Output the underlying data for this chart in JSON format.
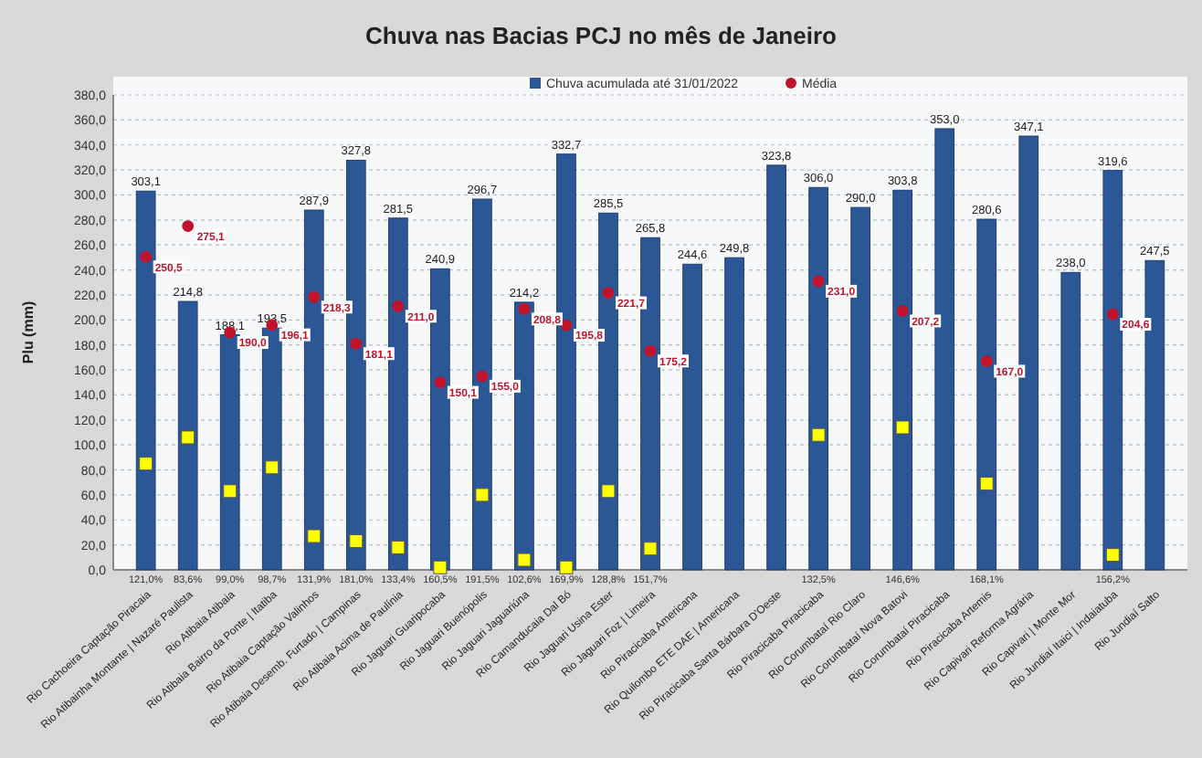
{
  "chart_data": {
    "type": "bar",
    "title": "Chuva nas Bacias PCJ no mês de Janeiro",
    "ylabel": "Plu (mm)",
    "categories": [
      "Rio Cachoeira Captação Piracaia",
      "Rio Atibainha Montante | Nazaré Paulista",
      "Rio Atibaia Atibaia",
      "Rio Atibaia Bairro da Ponte | Itatiba",
      "Rio Atibaia Captação Valinhos",
      "Rio Atibaia Desemb. Furtado | Campinas",
      "Rio Atibaia Acima de Paulínia",
      "Rio Jaguari Guaripocaba",
      "Rio Jaguari Buenópolis",
      "Rio Jaguari Jaguariúna",
      "Rio Camanducaia Dal Bó",
      "Rio Jaguari Usina Ester",
      "Rio Jaguari Foz | Limeira",
      "Rio Piracicaba Americana",
      "Rio Quilombo ETE DAE | Americana",
      "Rio Piracicaba Santa Bárbara D'Oeste",
      "Rio Piracicaba Piracicaba",
      "Rio Corumbataí Rio Claro",
      "Rio Corumbataí Nova Batovi",
      "Rio Corumbataí Piracicaba",
      "Rio Piracicaba Artemis",
      "Rio Capivari Reforma Agrária",
      "Rio Capivari | Monte Mor",
      "Rio Jundiaí Itaici | Indaiatuba",
      "Rio Jundiaí Salto"
    ],
    "series": [
      {
        "name": "Chuva acumulada até 31/01/2022",
        "type": "bar",
        "color": "#2b5797",
        "values": [
          303.1,
          214.8,
          188.1,
          193.5,
          287.9,
          327.8,
          281.5,
          240.9,
          296.7,
          214.2,
          332.7,
          285.5,
          265.8,
          244.6,
          249.8,
          323.8,
          306.0,
          290.0,
          303.8,
          353.0,
          280.6,
          347.1,
          238.0,
          319.6,
          247.5
        ],
        "value_labels": [
          "303,1",
          "214,8",
          "188,1",
          "193,5",
          "287,9",
          "327,8",
          "281,5",
          "240,9",
          "296,7",
          "214,2",
          "332,7",
          "285,5",
          "265,8",
          "244,6",
          "249,8",
          "323,8",
          "306,0",
          "290,0",
          "303,8",
          "353,0",
          "280,6",
          "347,1",
          "238,0",
          "319,6",
          "247,5"
        ]
      },
      {
        "name": "Média",
        "type": "scatter",
        "marker": "circle",
        "color": "#c0142c",
        "values": [
          250.5,
          275.1,
          190.0,
          196.1,
          218.3,
          181.1,
          211.0,
          150.1,
          155.0,
          208.8,
          195.8,
          221.7,
          175.2,
          null,
          null,
          null,
          231.0,
          null,
          207.2,
          null,
          167.0,
          null,
          null,
          204.6,
          null
        ],
        "value_labels": [
          "250,5",
          "275,1",
          "190,0",
          "196,1",
          "218,3",
          "181,1",
          "211,0",
          "150,1",
          "155,0",
          "208,8",
          "195,8",
          "221,7",
          "175,2",
          null,
          null,
          null,
          "231,0",
          null,
          "207,2",
          null,
          "167,0",
          null,
          null,
          "204,6",
          null
        ]
      },
      {
        "type": "scatter",
        "marker": "square",
        "color": "#ffff00",
        "values": [
          85,
          106,
          63,
          82,
          27,
          23,
          18,
          2,
          60,
          8,
          2,
          63,
          17,
          null,
          null,
          null,
          108,
          null,
          114,
          null,
          69,
          null,
          null,
          12,
          null
        ]
      }
    ],
    "annotations": [
      "121,0%",
      "83,6%",
      "99,0%",
      "98,7%",
      "131,9%",
      "181,0%",
      "133,4%",
      "160,5%",
      "191,5%",
      "102,6%",
      "169,9%",
      "128,8%",
      "151,7%",
      "132,5%",
      "146,6%",
      "168,1%",
      "156,2%"
    ],
    "ylim": [
      0,
      380
    ],
    "yticks": [
      {
        "value": 0,
        "label": "0,0"
      },
      {
        "value": 20,
        "label": "20,0"
      },
      {
        "value": 40,
        "label": "40,0"
      },
      {
        "value": 60,
        "label": "60,0"
      },
      {
        "value": 80,
        "label": "80,0"
      },
      {
        "value": 100,
        "label": "100,0"
      },
      {
        "value": 120,
        "label": "120,0"
      },
      {
        "value": 140,
        "label": "140,0"
      },
      {
        "value": 160,
        "label": "160,0"
      },
      {
        "value": 180,
        "label": "180,0"
      },
      {
        "value": 200,
        "label": "200,0"
      },
      {
        "value": 220,
        "label": "220,0"
      },
      {
        "value": 240,
        "label": "240,0"
      },
      {
        "value": 260,
        "label": "260,0"
      },
      {
        "value": 280,
        "label": "280,0"
      },
      {
        "value": 300,
        "label": "300,0"
      },
      {
        "value": 320,
        "label": "320,0"
      },
      {
        "value": 340,
        "label": "340,0"
      },
      {
        "value": 360,
        "label": "360,0"
      },
      {
        "value": 380,
        "label": "380,0"
      }
    ],
    "grid": "y",
    "legend": "top"
  }
}
